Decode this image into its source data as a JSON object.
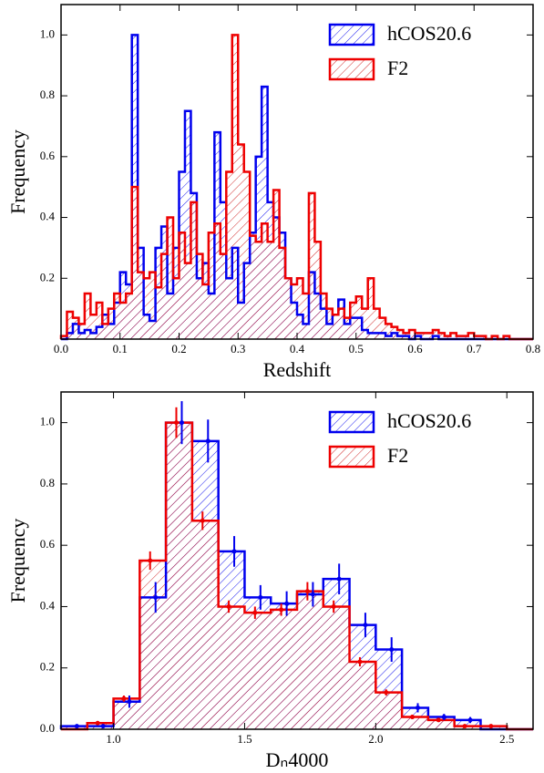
{
  "chart_data": [
    {
      "type": "histogram",
      "xlabel": "Redshift",
      "ylabel": "Frequency",
      "bins": [
        0.0,
        0.01,
        0.02,
        0.03,
        0.04,
        0.05,
        0.06,
        0.07,
        0.08,
        0.09,
        0.1,
        0.11,
        0.12,
        0.13,
        0.14,
        0.15,
        0.16,
        0.17,
        0.18,
        0.19,
        0.2,
        0.21,
        0.22,
        0.23,
        0.24,
        0.25,
        0.26,
        0.27,
        0.28,
        0.29,
        0.3,
        0.31,
        0.32,
        0.33,
        0.34,
        0.35,
        0.36,
        0.37,
        0.38,
        0.39,
        0.4,
        0.41,
        0.42,
        0.43,
        0.44,
        0.45,
        0.46,
        0.47,
        0.48,
        0.49,
        0.5,
        0.51,
        0.52,
        0.53,
        0.54,
        0.55,
        0.56,
        0.57,
        0.58,
        0.59,
        0.6,
        0.61,
        0.62,
        0.63,
        0.64,
        0.65,
        0.66,
        0.67,
        0.68,
        0.69,
        0.7,
        0.71,
        0.72,
        0.73,
        0.74,
        0.75,
        0.76,
        0.77,
        0.78,
        0.79,
        0.8
      ],
      "series": [
        {
          "name": "hCOS20.6",
          "color": "#0000ee",
          "values": [
            0,
            0.02,
            0.05,
            0.02,
            0.03,
            0.02,
            0.04,
            0.08,
            0.05,
            0.12,
            0.22,
            0.18,
            1.0,
            0.3,
            0.08,
            0.06,
            0.3,
            0.37,
            0.15,
            0.3,
            0.55,
            0.75,
            0.48,
            0.2,
            0.25,
            0.15,
            0.68,
            0.45,
            0.2,
            0.3,
            0.12,
            0.25,
            0.35,
            0.6,
            0.83,
            0.45,
            0.4,
            0.35,
            0.2,
            0.12,
            0.08,
            0.05,
            0.22,
            0.15,
            0.1,
            0.05,
            0.08,
            0.13,
            0.05,
            0.07,
            0.07,
            0.03,
            0.02,
            0.02,
            0.02,
            0.01,
            0.02,
            0.01,
            0.01,
            0,
            0.01,
            0,
            0,
            0.01,
            0,
            0,
            0,
            0,
            0,
            0,
            0,
            0,
            0,
            0,
            0,
            0,
            0,
            0,
            0,
            0
          ]
        },
        {
          "name": "F2",
          "color": "#ee0000",
          "values": [
            0.01,
            0.09,
            0.07,
            0.05,
            0.15,
            0.08,
            0.12,
            0.05,
            0.1,
            0.15,
            0.12,
            0.15,
            0.5,
            0.22,
            0.2,
            0.22,
            0.17,
            0.28,
            0.4,
            0.2,
            0.35,
            0.25,
            0.45,
            0.28,
            0.18,
            0.35,
            0.38,
            0.28,
            0.55,
            1.0,
            0.64,
            0.55,
            0.34,
            0.32,
            0.38,
            0.32,
            0.49,
            0.3,
            0.2,
            0.18,
            0.2,
            0.15,
            0.48,
            0.32,
            0.15,
            0.1,
            0.08,
            0.1,
            0.07,
            0.12,
            0.14,
            0.1,
            0.2,
            0.1,
            0.07,
            0.05,
            0.04,
            0.03,
            0.02,
            0.03,
            0.02,
            0.02,
            0.02,
            0.03,
            0.02,
            0.01,
            0.02,
            0.01,
            0.01,
            0.02,
            0.01,
            0.01,
            0,
            0.01,
            0,
            0.01,
            0,
            0,
            0,
            0
          ]
        }
      ],
      "xlim": [
        0,
        0.8
      ],
      "xticks": [
        {
          "value": 0,
          "label": "0.0"
        },
        0.1,
        0.2,
        0.3,
        0.4,
        0.5,
        0.6,
        0.7,
        0.8
      ],
      "ylim": [
        0,
        1.1
      ],
      "yticks": [
        0.2,
        0.4,
        0.6,
        0.8,
        {
          "value": 1,
          "label": "1.0"
        }
      ],
      "legend": "upper right"
    },
    {
      "type": "histogram",
      "xlabel": "Dₙ4000",
      "ylabel": "Frequency",
      "bins": [
        0.8,
        0.9,
        1.0,
        1.1,
        1.2,
        1.3,
        1.4,
        1.5,
        1.6,
        1.7,
        1.8,
        1.9,
        2.0,
        2.1,
        2.2,
        2.3,
        2.4,
        2.5,
        2.6
      ],
      "series": [
        {
          "name": "hCOS20.6",
          "color": "#0000ee",
          "values": [
            0.01,
            0.01,
            0.09,
            0.43,
            1.0,
            0.94,
            0.58,
            0.43,
            0.41,
            0.44,
            0.49,
            0.34,
            0.26,
            0.07,
            0.04,
            0.03,
            0,
            0
          ],
          "errors": [
            0.005,
            0.005,
            0.02,
            0.05,
            0.07,
            0.07,
            0.05,
            0.04,
            0.04,
            0.04,
            0.05,
            0.04,
            0.04,
            0.015,
            0.01,
            0.01,
            0,
            0
          ]
        },
        {
          "name": "F2",
          "color": "#ee0000",
          "values": [
            0,
            0.02,
            0.1,
            0.55,
            1.0,
            0.68,
            0.4,
            0.38,
            0.39,
            0.45,
            0.4,
            0.22,
            0.12,
            0.04,
            0.03,
            0.01,
            0.01,
            0
          ],
          "errors": [
            0,
            0.005,
            0.01,
            0.03,
            0.05,
            0.03,
            0.02,
            0.02,
            0.02,
            0.03,
            0.02,
            0.015,
            0.01,
            0.005,
            0.005,
            0.003,
            0.003,
            0
          ]
        }
      ],
      "xlim": [
        0.8,
        2.6
      ],
      "xticks": [
        {
          "value": 1,
          "label": "1.0"
        },
        1.5,
        {
          "value": 2,
          "label": "2.0"
        },
        2.5
      ],
      "ylim": [
        0,
        1.1
      ],
      "yticks": [
        {
          "value": 0,
          "label": "0.0"
        },
        0.2,
        0.4,
        0.6,
        0.8,
        {
          "value": 1,
          "label": "1.0"
        }
      ],
      "legend": "upper right"
    }
  ]
}
